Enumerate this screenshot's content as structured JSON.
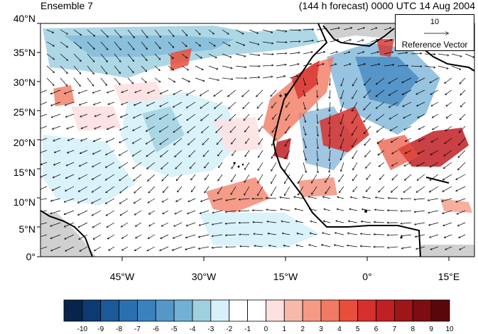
{
  "titles": {
    "left": "Ensemble 7",
    "right": "(144 h forecast) 0000 UTC 14 Aug 2004"
  },
  "lat_labels": [
    "40°N",
    "35°N",
    "30°N",
    "25°N",
    "20°N",
    "15°N",
    "10°N",
    "5°N",
    "0°"
  ],
  "lon_labels": [
    "45°W",
    "30°W",
    "15°W",
    "0°",
    "15°E"
  ],
  "reference_vector": {
    "value": "10",
    "label": "Reference Vector"
  },
  "colorbar": {
    "labels": [
      "-10",
      "-9",
      "-8",
      "-7",
      "-6",
      "-5",
      "-4",
      "-3",
      "-2",
      "-1",
      "0",
      "1",
      "2",
      "3",
      "4",
      "5",
      "6",
      "7",
      "8",
      "9",
      "10"
    ],
    "colors": [
      "#08244a",
      "#0c3a72",
      "#1a5a9a",
      "#2a6fb0",
      "#3a82be",
      "#5497c8",
      "#74b0d6",
      "#9fd0e0",
      "#d6f1fa",
      "#ffffff",
      "#ffffff",
      "#fde0e0",
      "#f8b9ab",
      "#f49a85",
      "#f07a62",
      "#e94e3b",
      "#d7302c",
      "#c01f24",
      "#a01519",
      "#7d0d12",
      "#5a070b"
    ]
  },
  "map": {
    "extent": {
      "lon": [
        -60,
        20
      ],
      "lat": [
        0,
        40
      ]
    },
    "ocean_color": "#ffffff",
    "missing_color": "#d0d0d0"
  }
}
